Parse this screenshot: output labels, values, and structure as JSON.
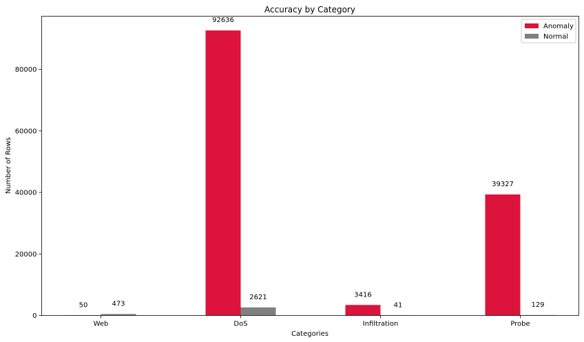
{
  "chart_data": {
    "type": "bar",
    "title": "Accuracy by Category",
    "xlabel": "Categories",
    "ylabel": "Number of Rows",
    "categories": [
      "Web",
      "DoS",
      "Infiltration",
      "Probe"
    ],
    "series": [
      {
        "name": "Anomaly",
        "color": "#dc143c",
        "values": [
          50,
          92636,
          3416,
          39327
        ]
      },
      {
        "name": "Normal",
        "color": "#808080",
        "values": [
          473,
          2621,
          41,
          129
        ]
      }
    ],
    "ylim": [
      0,
      97268
    ],
    "yticks": [
      0,
      20000,
      40000,
      60000,
      80000
    ],
    "ytick_labels": [
      "0",
      "20000",
      "40000",
      "60000",
      "80000"
    ],
    "legend_position": "top-right",
    "grid": false,
    "data_labels": true
  }
}
